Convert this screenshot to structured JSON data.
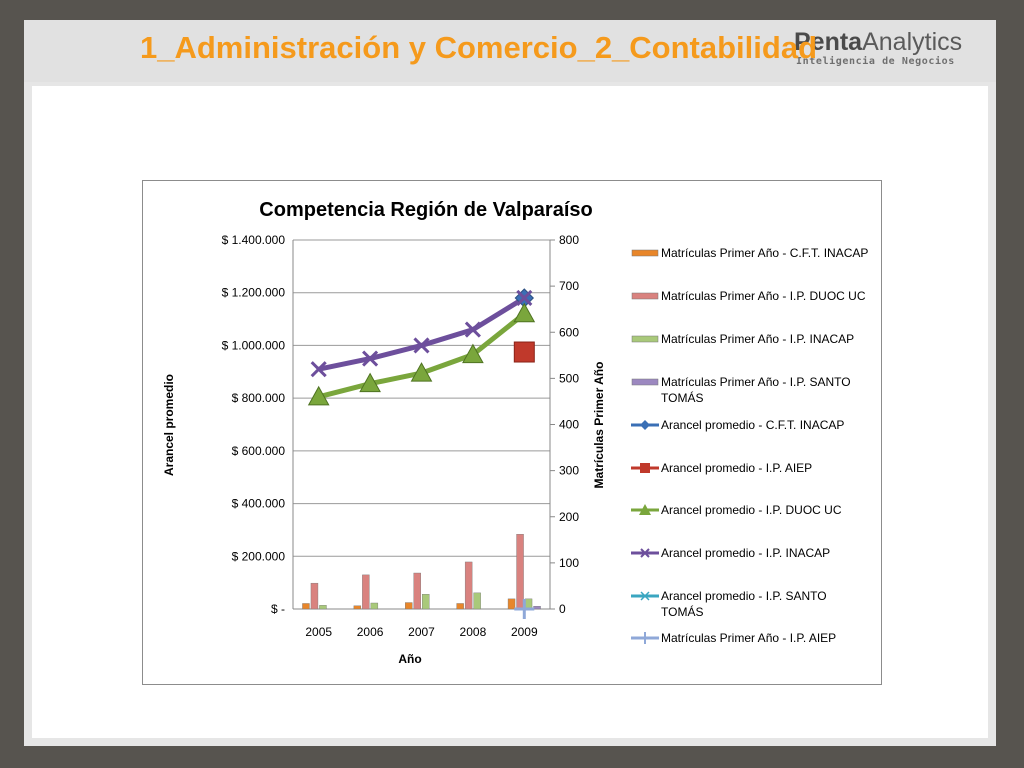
{
  "slide": {
    "title": "1_Administración y Comercio_2_Contabilidad",
    "logo": {
      "main_bold": "Penta",
      "main_rest": "Analytics",
      "sub": "Inteligencia de Negocios"
    }
  },
  "chart_data": {
    "type": "bar+line",
    "title": "Competencia Región de Valparaíso",
    "xlabel": "Año",
    "ylabel": "Arancel promedio",
    "y2label": "Matrículas Primer Año",
    "categories": [
      "2005",
      "2006",
      "2007",
      "2008",
      "2009"
    ],
    "ylim": [
      0,
      1400000
    ],
    "y_ticks": [
      "$ -",
      "$ 200.000",
      "$ 400.000",
      "$ 600.000",
      "$ 800.000",
      "$ 1.000.000",
      "$ 1.200.000",
      "$ 1.400.000"
    ],
    "y2lim": [
      0,
      800
    ],
    "y2_ticks": [
      "0",
      "100",
      "200",
      "300",
      "400",
      "500",
      "600",
      "700",
      "800"
    ],
    "grid": true,
    "legend_position": "right",
    "bar_series": [
      {
        "name": "Matrículas Primer Año - C.F.T. INACAP",
        "color": "#e8862a",
        "axis": "right",
        "values": [
          12,
          7,
          14,
          12,
          22
        ]
      },
      {
        "name": "Matrículas Primer Año - I.P. DUOC UC",
        "color": "#d9827f",
        "axis": "right",
        "values": [
          56,
          74,
          78,
          102,
          162
        ]
      },
      {
        "name": "Matrículas Primer Año - I.P. INACAP",
        "color": "#a9c97a",
        "axis": "right",
        "values": [
          8,
          13,
          32,
          35,
          22
        ]
      },
      {
        "name": "Matrículas Primer Año - I.P. SANTO TOMÁS",
        "color": "#9c88c0",
        "axis": "right",
        "values": [
          null,
          null,
          null,
          null,
          6
        ]
      }
    ],
    "line_series": [
      {
        "name": "Arancel promedio  - C.F.T. INACAP",
        "color": "#3a6fb5",
        "marker": "diamond",
        "axis": "left",
        "values": [
          null,
          null,
          null,
          null,
          1180000
        ]
      },
      {
        "name": "Arancel promedio  - I.P. AIEP",
        "color": "#c0392b",
        "marker": "square",
        "axis": "left",
        "values": [
          null,
          null,
          null,
          null,
          975000
        ]
      },
      {
        "name": "Arancel promedio  - I.P. DUOC UC",
        "color": "#7aa63c",
        "marker": "triangle",
        "axis": "left",
        "values": [
          805000,
          855000,
          895000,
          965000,
          1120000
        ]
      },
      {
        "name": "Arancel promedio  - I.P. INACAP",
        "color": "#6d4f9c",
        "marker": "x",
        "axis": "left",
        "values": [
          910000,
          950000,
          1000000,
          1060000,
          1180000
        ]
      },
      {
        "name": "Arancel promedio  - I.P. SANTO TOMÁS",
        "color": "#3aa6c0",
        "marker": "asterisk",
        "axis": "left",
        "values": [
          null,
          null,
          null,
          null,
          null
        ]
      },
      {
        "name": "Matrículas Primer Año - I.P. AIEP",
        "color": "#8fa8d8",
        "marker": "plus",
        "axis": "right",
        "values": [
          null,
          null,
          null,
          null,
          0
        ]
      }
    ],
    "legend_order": [
      "Matrículas Primer Año - C.F.T. INACAP",
      "Matrículas Primer Año - I.P. DUOC UC",
      "Matrículas Primer Año - I.P. INACAP",
      "Matrículas Primer Año - I.P. SANTO TOMÁS",
      "Arancel promedio  - C.F.T. INACAP",
      "Arancel promedio  - I.P. AIEP",
      "Arancel promedio  - I.P. DUOC UC",
      "Arancel promedio  - I.P. INACAP",
      "Arancel promedio  - I.P. SANTO TOMÁS",
      "Matrículas Primer Año - I.P. AIEP"
    ]
  }
}
